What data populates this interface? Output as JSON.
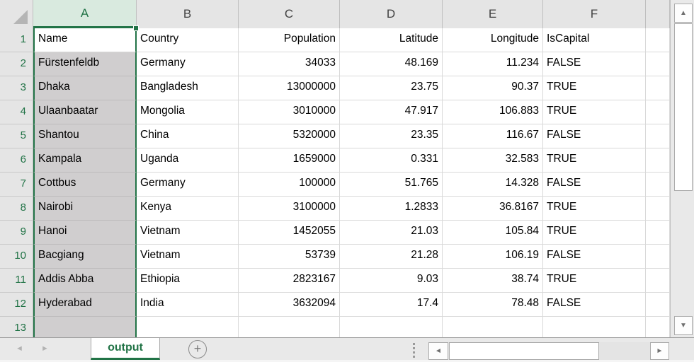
{
  "colors": {
    "accent_green": "#217346",
    "selected_header_bg": "#D9EADF",
    "selection_fill": "#D0CECF",
    "header_bg": "#E5E5E5"
  },
  "icons": {
    "select_all": "triangle-corner",
    "scroll_up": "▲",
    "scroll_down": "▼",
    "scroll_left": "◄",
    "scroll_right": "►",
    "sheet_prev": "◄",
    "sheet_next": "►",
    "add_sheet": "+"
  },
  "tabbar": {
    "active_tab": "output"
  },
  "sheet": {
    "columns": [
      {
        "letter": "A",
        "selected": true
      },
      {
        "letter": "B",
        "selected": false
      },
      {
        "letter": "C",
        "selected": false
      },
      {
        "letter": "D",
        "selected": false
      },
      {
        "letter": "E",
        "selected": false
      },
      {
        "letter": "F",
        "selected": false
      },
      {
        "letter": "",
        "selected": false
      }
    ],
    "rows": [
      {
        "n": "1",
        "cells": [
          "Name",
          "Country",
          "Population",
          "Latitude",
          "Longitude",
          "IsCapital",
          ""
        ]
      },
      {
        "n": "2",
        "cells": [
          "Fürstenfeldb",
          "Germany",
          "34033",
          "48.169",
          "11.234",
          "FALSE",
          ""
        ]
      },
      {
        "n": "3",
        "cells": [
          "Dhaka",
          "Bangladesh",
          "13000000",
          "23.75",
          "90.37",
          "TRUE",
          ""
        ]
      },
      {
        "n": "4",
        "cells": [
          "Ulaanbaatar",
          "Mongolia",
          "3010000",
          "47.917",
          "106.883",
          "TRUE",
          ""
        ]
      },
      {
        "n": "5",
        "cells": [
          "Shantou",
          "China",
          "5320000",
          "23.35",
          "116.67",
          "FALSE",
          ""
        ]
      },
      {
        "n": "6",
        "cells": [
          "Kampala",
          "Uganda",
          "1659000",
          "0.331",
          "32.583",
          "TRUE",
          ""
        ]
      },
      {
        "n": "7",
        "cells": [
          "Cottbus",
          "Germany",
          "100000",
          "51.765",
          "14.328",
          "FALSE",
          ""
        ]
      },
      {
        "n": "8",
        "cells": [
          "Nairobi",
          "Kenya",
          "3100000",
          "1.2833",
          "36.8167",
          "TRUE",
          ""
        ]
      },
      {
        "n": "9",
        "cells": [
          "Hanoi",
          "Vietnam",
          "1452055",
          "21.03",
          "105.84",
          "TRUE",
          ""
        ]
      },
      {
        "n": "10",
        "cells": [
          "Bacgiang",
          "Vietnam",
          "53739",
          "21.28",
          "106.19",
          "FALSE",
          ""
        ]
      },
      {
        "n": "11",
        "cells": [
          "Addis Abba",
          "Ethiopia",
          "2823167",
          "9.03",
          "38.74",
          "TRUE",
          ""
        ]
      },
      {
        "n": "12",
        "cells": [
          "Hyderabad",
          "India",
          "3632094",
          "17.4",
          "78.48",
          "FALSE",
          ""
        ]
      },
      {
        "n": "13",
        "cells": [
          "",
          "",
          "",
          "",
          "",
          "",
          ""
        ]
      }
    ]
  }
}
